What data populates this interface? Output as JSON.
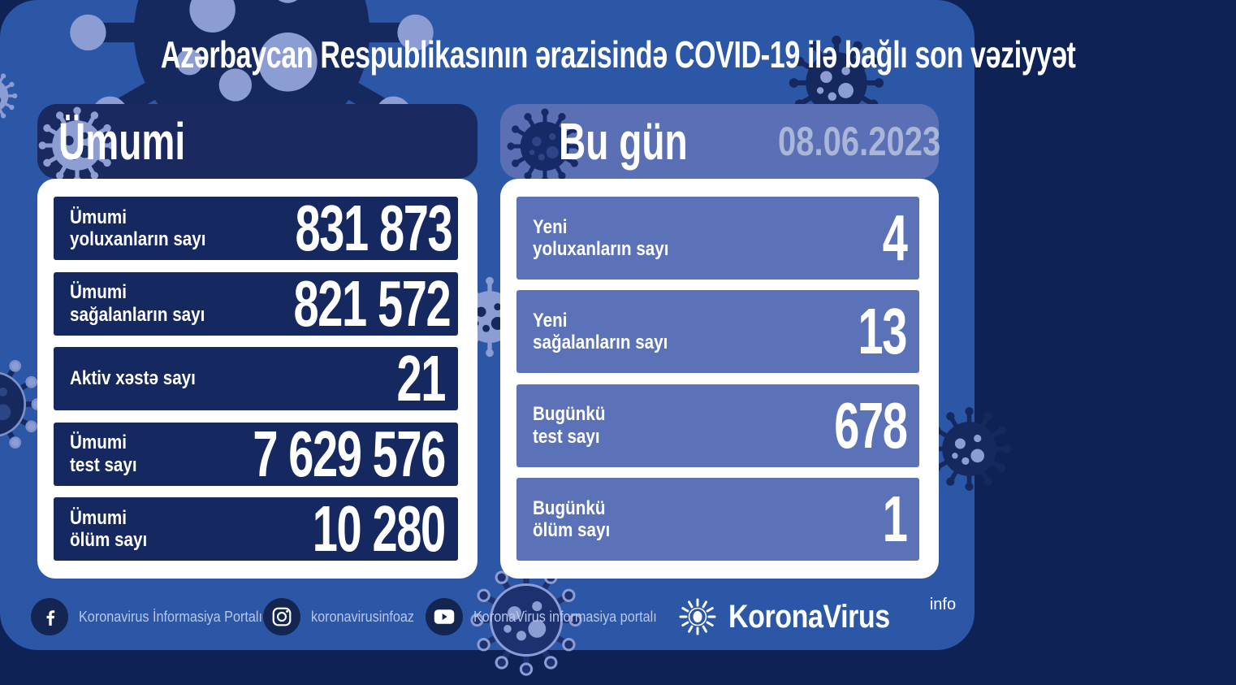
{
  "title": "Azərbaycan Respublikasının ərazisində COVID-19 ilə bağlı son vəziyyət",
  "totals": {
    "header": "Ümumi",
    "rows": [
      {
        "label_line1": "Ümumi",
        "label_line2": "yoluxanların sayı",
        "value": "831 873"
      },
      {
        "label_line1": "Ümumi",
        "label_line2": "sağalanların sayı",
        "value": "821 572"
      },
      {
        "label_line1": "Aktiv xəstə sayı",
        "label_line2": "",
        "value": "21"
      },
      {
        "label_line1": "Ümumi",
        "label_line2": "test sayı",
        "value": "7 629 576"
      },
      {
        "label_line1": "Ümumi",
        "label_line2": "ölüm sayı",
        "value": "10 280"
      }
    ]
  },
  "today": {
    "header": "Bu gün",
    "date": "08.06.2023",
    "rows": [
      {
        "label_line1": "Yeni",
        "label_line2": "yoluxanların sayı",
        "value": "4"
      },
      {
        "label_line1": "Yeni",
        "label_line2": "sağalanların sayı",
        "value": "13"
      },
      {
        "label_line1": "Bugünkü",
        "label_line2": "test sayı",
        "value": "678"
      },
      {
        "label_line1": "Bugünkü",
        "label_line2": "ölüm sayı",
        "value": "1"
      }
    ]
  },
  "footer": {
    "facebook_label": "Koronavirus İnformasiya Portalı",
    "instagram_label": "koronavirusinfoaz",
    "youtube_label": "KoronaVirus informasiya portalı",
    "logo_text": "KoronaVirus",
    "logo_superscript": "info"
  },
  "colors": {
    "background_navy": "#0e2256",
    "main_blue": "#2b57a6",
    "card_navy": "#15285f",
    "periwinkle": "#5b72b8",
    "light_virus": "#8e9ed2",
    "date_text": "#aab6d7",
    "footer_text": "#b9c6e8",
    "white": "#ffffff"
  },
  "chart_data": [
    {
      "type": "table",
      "title": "Ümumi",
      "rows": [
        [
          "Ümumi yoluxanların sayı",
          831873
        ],
        [
          "Ümumi sağalanların sayı",
          821572
        ],
        [
          "Aktiv xəstə sayı",
          21
        ],
        [
          "Ümumi test sayı",
          7629576
        ],
        [
          "Ümumi ölüm sayı",
          10280
        ]
      ]
    },
    {
      "type": "table",
      "title": "Bu gün (08.06.2023)",
      "rows": [
        [
          "Yeni yoluxanların sayı",
          4
        ],
        [
          "Yeni sağalanların sayı",
          13
        ],
        [
          "Bugünkü test sayı",
          678
        ],
        [
          "Bugünkü ölüm sayı",
          1
        ]
      ]
    }
  ]
}
